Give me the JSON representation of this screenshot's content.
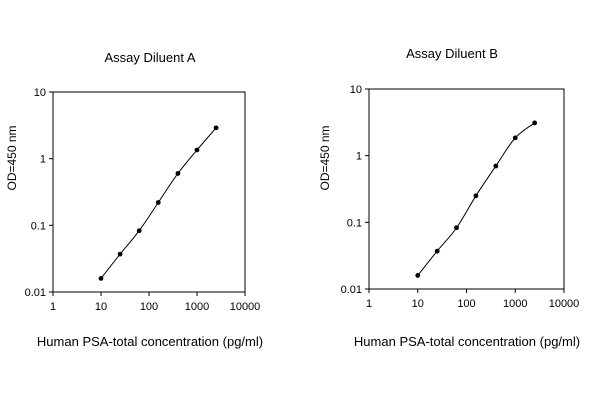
{
  "chart_data": [
    {
      "type": "line",
      "title": "Assay Diluent A",
      "xlabel": "Human PSA-total concentration (pg/ml)",
      "ylabel": "OD=450 nm",
      "xscale": "log",
      "yscale": "log",
      "xlim": [
        1,
        10000
      ],
      "ylim": [
        0.01,
        10
      ],
      "xticks": [
        "1",
        "10",
        "100",
        "1000",
        "10000"
      ],
      "yticks": [
        "0.01",
        "0.1",
        "1",
        "10"
      ],
      "grid": false,
      "series": [
        {
          "x": [
            10,
            25,
            62.5,
            156,
            400,
            1000,
            2500
          ],
          "y": [
            0.016,
            0.037,
            0.083,
            0.22,
            0.6,
            1.35,
            2.9
          ]
        }
      ]
    },
    {
      "type": "line",
      "title": "Assay Diluent B",
      "xlabel": "Human PSA-total concentration (pg/ml)",
      "ylabel": "OD=450 nm",
      "xscale": "log",
      "yscale": "log",
      "xlim": [
        1,
        10000
      ],
      "ylim": [
        0.01,
        10
      ],
      "xticks": [
        "1",
        "10",
        "100",
        "1000",
        "10000"
      ],
      "yticks": [
        "0.01",
        "0.1",
        "1",
        "10"
      ],
      "grid": false,
      "series": [
        {
          "x": [
            10,
            25,
            62.5,
            156,
            400,
            1000,
            2500
          ],
          "y": [
            0.016,
            0.037,
            0.083,
            0.25,
            0.7,
            1.85,
            3.1
          ]
        }
      ]
    }
  ]
}
